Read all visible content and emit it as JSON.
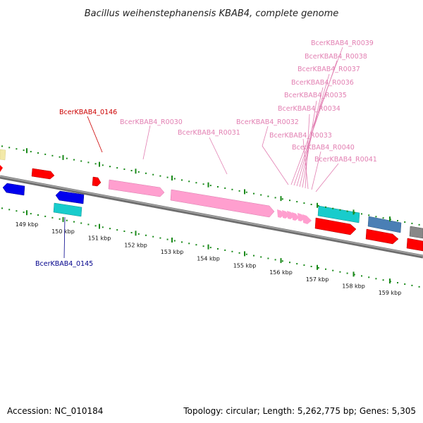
{
  "title": "Bacillus weihenstephanensis KBAB4, complete genome",
  "footer": {
    "accession": "Accession: NC_010184",
    "topology": "Topology: circular; Length: 5,262,775 bp; Genes: 5,305"
  },
  "colors": {
    "backbone": "#8a8a8a",
    "tick": "#1a8a1a",
    "rrna_label": "#e27fb2",
    "cds_red": "#ff0000",
    "cds_blue": "#0000ee",
    "cds_cyan": "#18cccc",
    "rrna_pink": "#ff9fcf",
    "steel": "#4a7fb5",
    "gray": "#888888",
    "yellow": "#f3e9a8",
    "label_red": "#cc0000",
    "label_blue": "#00008b"
  },
  "scale": {
    "ticks": [
      {
        "kbp": 149,
        "label": "149 kbp"
      },
      {
        "kbp": 150,
        "label": "150 kbp"
      },
      {
        "kbp": 151,
        "label": "151 kbp"
      },
      {
        "kbp": 152,
        "label": "152 kbp"
      },
      {
        "kbp": 153,
        "label": "153 kbp"
      },
      {
        "kbp": 154,
        "label": "154 kbp"
      },
      {
        "kbp": 155,
        "label": "155 kbp"
      },
      {
        "kbp": 156,
        "label": "156 kbp"
      },
      {
        "kbp": 157,
        "label": "157 kbp"
      },
      {
        "kbp": 158,
        "label": "158 kbp"
      },
      {
        "kbp": 159,
        "label": "159 kbp"
      }
    ]
  },
  "gene_labels": [
    {
      "text": "BcerKBAB4_R0039",
      "color_key": "rrna_label"
    },
    {
      "text": "BcerKBAB4_R0038",
      "color_key": "rrna_label"
    },
    {
      "text": "BcerKBAB4_R0037",
      "color_key": "rrna_label"
    },
    {
      "text": "BcerKBAB4_R0036",
      "color_key": "rrna_label"
    },
    {
      "text": "BcerKBAB4_R0035",
      "color_key": "rrna_label"
    },
    {
      "text": "BcerKBAB4_R0034",
      "color_key": "rrna_label"
    },
    {
      "text": "BcerKBAB4_0146",
      "color_key": "label_red"
    },
    {
      "text": "BcerKBAB4_R0030",
      "color_key": "rrna_label"
    },
    {
      "text": "BcerKBAB4_R0032",
      "color_key": "rrna_label"
    },
    {
      "text": "BcerKBAB4_R0031",
      "color_key": "rrna_label"
    },
    {
      "text": "BcerKBAB4_R0033",
      "color_key": "rrna_label"
    },
    {
      "text": "BcerKBAB4_R0040",
      "color_key": "rrna_label"
    },
    {
      "text": "BcerKBAB4_R0041",
      "color_key": "rrna_label"
    },
    {
      "text": "BcerKBAB4_0145",
      "color_key": "label_blue"
    }
  ]
}
